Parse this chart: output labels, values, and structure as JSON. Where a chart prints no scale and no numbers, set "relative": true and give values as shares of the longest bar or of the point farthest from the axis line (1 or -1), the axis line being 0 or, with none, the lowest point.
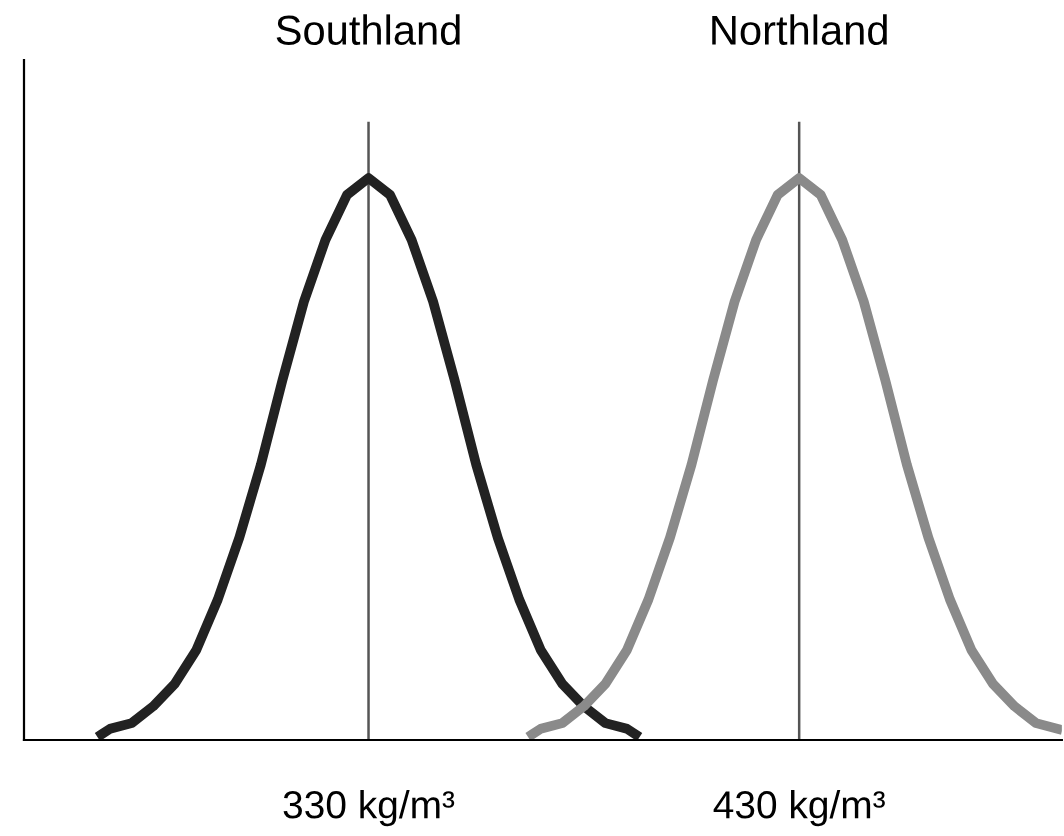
{
  "chart_data": {
    "type": "line",
    "relative": true,
    "xlim": [
      250,
      491
    ],
    "xticks": [
      {
        "value": 330,
        "label": "330 kg/m³"
      },
      {
        "value": 430,
        "label": "430 kg/m³"
      }
    ],
    "grid": false,
    "legend": false,
    "marker": "none",
    "line_style": "solid",
    "ref_lines": [
      {
        "axis": "x",
        "value": 330,
        "color": "#555555",
        "label": "Southland"
      },
      {
        "axis": "x",
        "value": 430,
        "color": "#555555",
        "label": "Northland"
      }
    ],
    "series": [
      {
        "color": "#222222",
        "x": [
          268,
          270,
          275,
          280,
          285,
          290,
          295,
          300,
          305,
          310,
          315,
          320,
          325,
          330,
          335,
          340,
          345,
          350,
          355,
          360,
          365,
          370,
          375,
          380,
          385,
          390,
          392
        ],
        "values": [
          0.01,
          0.02,
          0.03,
          0.06,
          0.1,
          0.16,
          0.25,
          0.36,
          0.49,
          0.64,
          0.78,
          0.89,
          0.97,
          1,
          0.97,
          0.89,
          0.78,
          0.64,
          0.49,
          0.36,
          0.25,
          0.16,
          0.1,
          0.06,
          0.03,
          0.02,
          0.01
        ]
      },
      {
        "color": "#8a8a8a",
        "x": [
          368,
          370,
          375,
          380,
          385,
          390,
          395,
          400,
          405,
          410,
          415,
          420,
          425,
          430,
          435,
          440,
          445,
          450,
          455,
          460,
          465,
          470,
          475,
          480,
          485,
          490
        ],
        "values": [
          0.01,
          0.02,
          0.03,
          0.06,
          0.1,
          0.16,
          0.25,
          0.36,
          0.49,
          0.64,
          0.78,
          0.89,
          0.97,
          1,
          0.97,
          0.89,
          0.78,
          0.64,
          0.49,
          0.36,
          0.25,
          0.16,
          0.1,
          0.06,
          0.03,
          0.02
        ]
      }
    ]
  }
}
